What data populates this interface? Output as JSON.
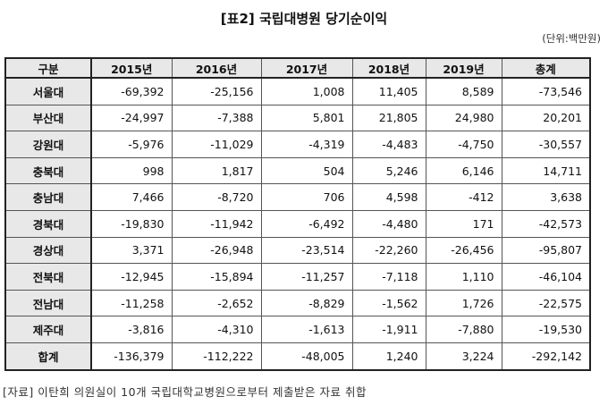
{
  "title": "[표2] 국립대병원 당기순이익",
  "unit": "(단위:백만원)",
  "columns": [
    "구분",
    "2015년",
    "2016년",
    "2017년",
    "2018년",
    "2019년",
    "총계"
  ],
  "rows": [
    [
      "서울대",
      "-69,392",
      "-25,156",
      "1,008",
      "11,405",
      "8,589",
      "-73,546"
    ],
    [
      "부산대",
      "-24,997",
      "-7,388",
      "5,801",
      "21,805",
      "24,980",
      "20,201"
    ],
    [
      "강원대",
      "-5,976",
      "-11,029",
      "-4,319",
      "-4,483",
      "-4,750",
      "-30,557"
    ],
    [
      "충북대",
      "998",
      "1,817",
      "504",
      "5,246",
      "6,146",
      "14,711"
    ],
    [
      "충남대",
      "7,466",
      "-8,720",
      "706",
      "4,598",
      "-412",
      "3,638"
    ],
    [
      "경북대",
      "-19,830",
      "-11,942",
      "-6,492",
      "-4,480",
      "171",
      "-42,573"
    ],
    [
      "경상대",
      "3,371",
      "-26,948",
      "-23,514",
      "-22,260",
      "-26,456",
      "-95,807"
    ],
    [
      "전북대",
      "-12,945",
      "-15,894",
      "-11,257",
      "-7,118",
      "1,110",
      "-46,104"
    ],
    [
      "전남대",
      "-11,258",
      "-2,652",
      "-8,829",
      "-1,562",
      "1,726",
      "-22,575"
    ],
    [
      "제주대",
      "-3,816",
      "-4,310",
      "-1,613",
      "-1,911",
      "-7,880",
      "-19,530"
    ],
    [
      "합계",
      "-136,379",
      "-112,222",
      "-48,005",
      "1,240",
      "3,224",
      "-292,142"
    ]
  ],
  "footer": "[자료] 이탄희 의원실이 10개 국립대학교병원으로부터 제출받은 자료 취합"
}
